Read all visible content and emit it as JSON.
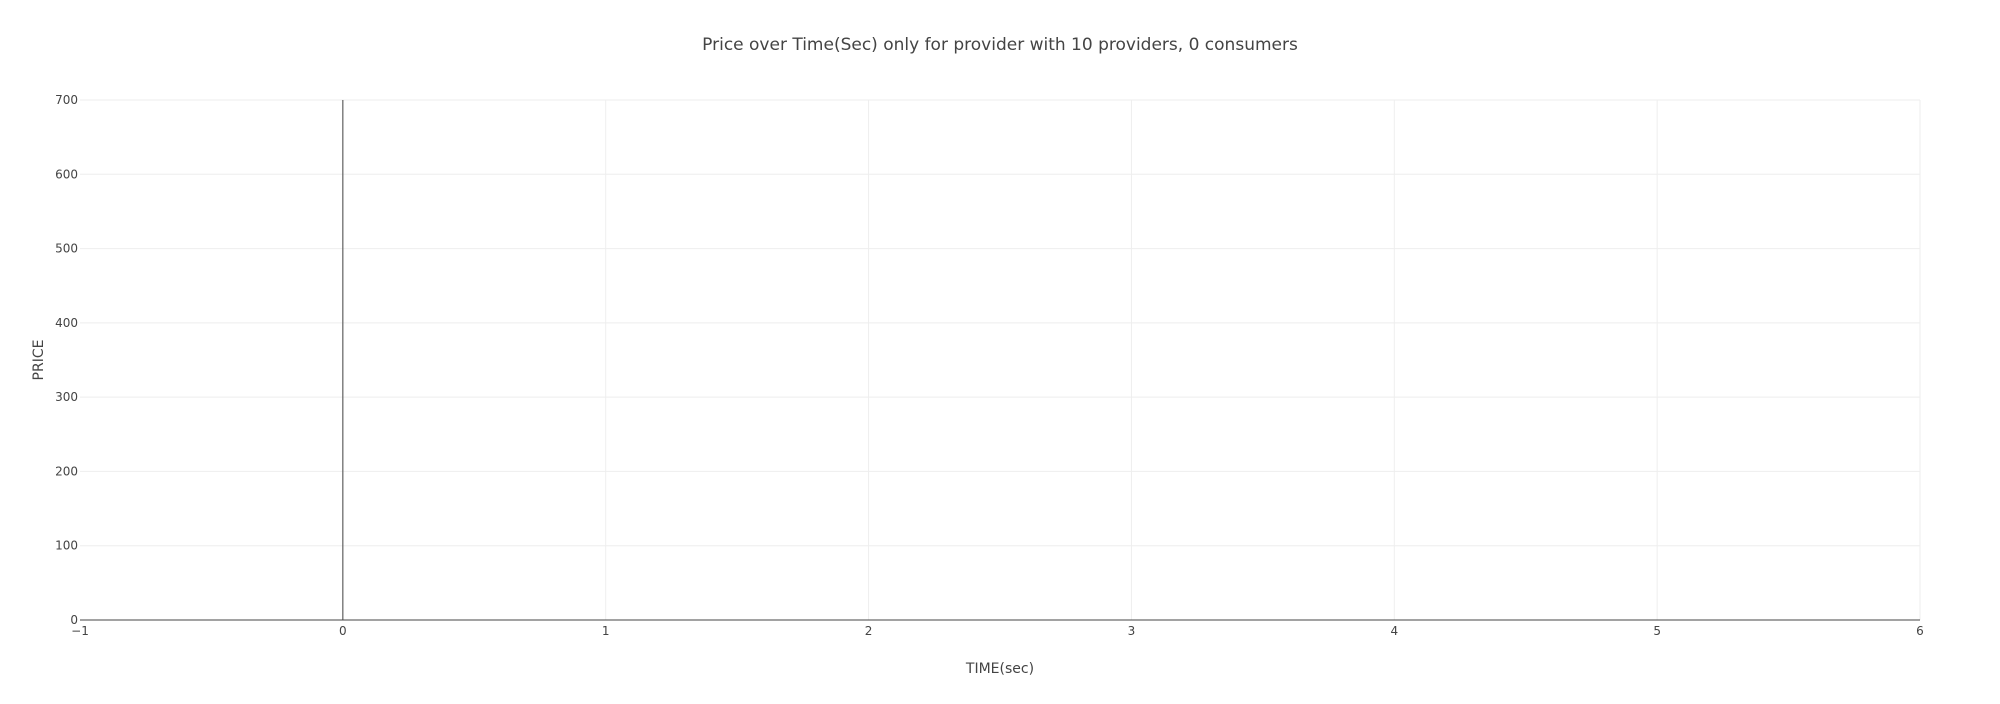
{
  "chart_data": {
    "type": "line",
    "title": "Price over Time(Sec) only for provider with 10 providers, 0 consumers",
    "xlabel": "TIME(sec)",
    "ylabel": "PRICE",
    "xlim": [
      -1,
      6
    ],
    "ylim": [
      0,
      700
    ],
    "x_ticks": [
      -1,
      0,
      1,
      2,
      3,
      4,
      5,
      6
    ],
    "x_tick_labels": [
      "−1",
      "0",
      "1",
      "2",
      "3",
      "4",
      "5",
      "6"
    ],
    "y_ticks": [
      0,
      100,
      200,
      300,
      400,
      500,
      600,
      700
    ],
    "y_tick_labels": [
      "0",
      "100",
      "200",
      "300",
      "400",
      "500",
      "600",
      "700"
    ],
    "grid": true,
    "zero_line_x": 0,
    "series": []
  },
  "colors": {
    "grid": "#eeeeee",
    "axis_line": "#444444",
    "zero_line": "#444444",
    "text": "#444444"
  }
}
